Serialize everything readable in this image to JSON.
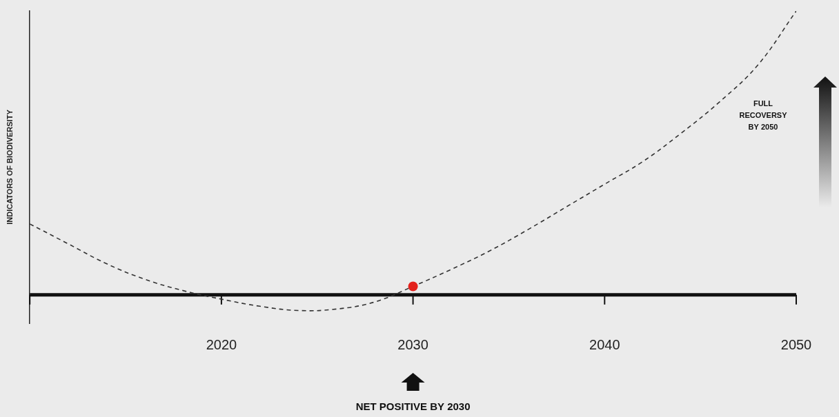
{
  "chart_data": {
    "type": "line",
    "x": [
      2010,
      2012,
      2014,
      2016,
      2018,
      2020,
      2022,
      2024,
      2026,
      2028,
      2030,
      2032,
      2034,
      2036,
      2038,
      2040,
      2042,
      2044,
      2046,
      2048,
      2050
    ],
    "series": [
      {
        "color": "#333333",
        "line_style": "dashed",
        "marker": "none",
        "values": [
          25,
          18,
          11,
          5.5,
          1.5,
          -1.5,
          -4,
          -5.5,
          -5,
          -2.5,
          3,
          9,
          15.5,
          23,
          31,
          39,
          47,
          57,
          68,
          81,
          100
        ]
      },
      {
        "type": "scatter",
        "color": "#e3211c",
        "marker": "circle",
        "values": [
          null,
          null,
          null,
          null,
          null,
          null,
          null,
          null,
          null,
          null,
          3,
          null,
          null,
          null,
          null,
          null,
          null,
          null,
          null,
          null,
          null
        ]
      }
    ],
    "xlim": [
      2010,
      2050
    ],
    "xticks": [
      2020,
      2030,
      2040,
      2050
    ],
    "ylim": [
      -10,
      100
    ],
    "y_label": "INDICATORS OF BIODIVERSITY",
    "annotations": [
      "NET POSITIVE BY 2030",
      "FULL RECOVERSY BY 2050"
    ],
    "grid": false,
    "tick_labels": "x"
  }
}
